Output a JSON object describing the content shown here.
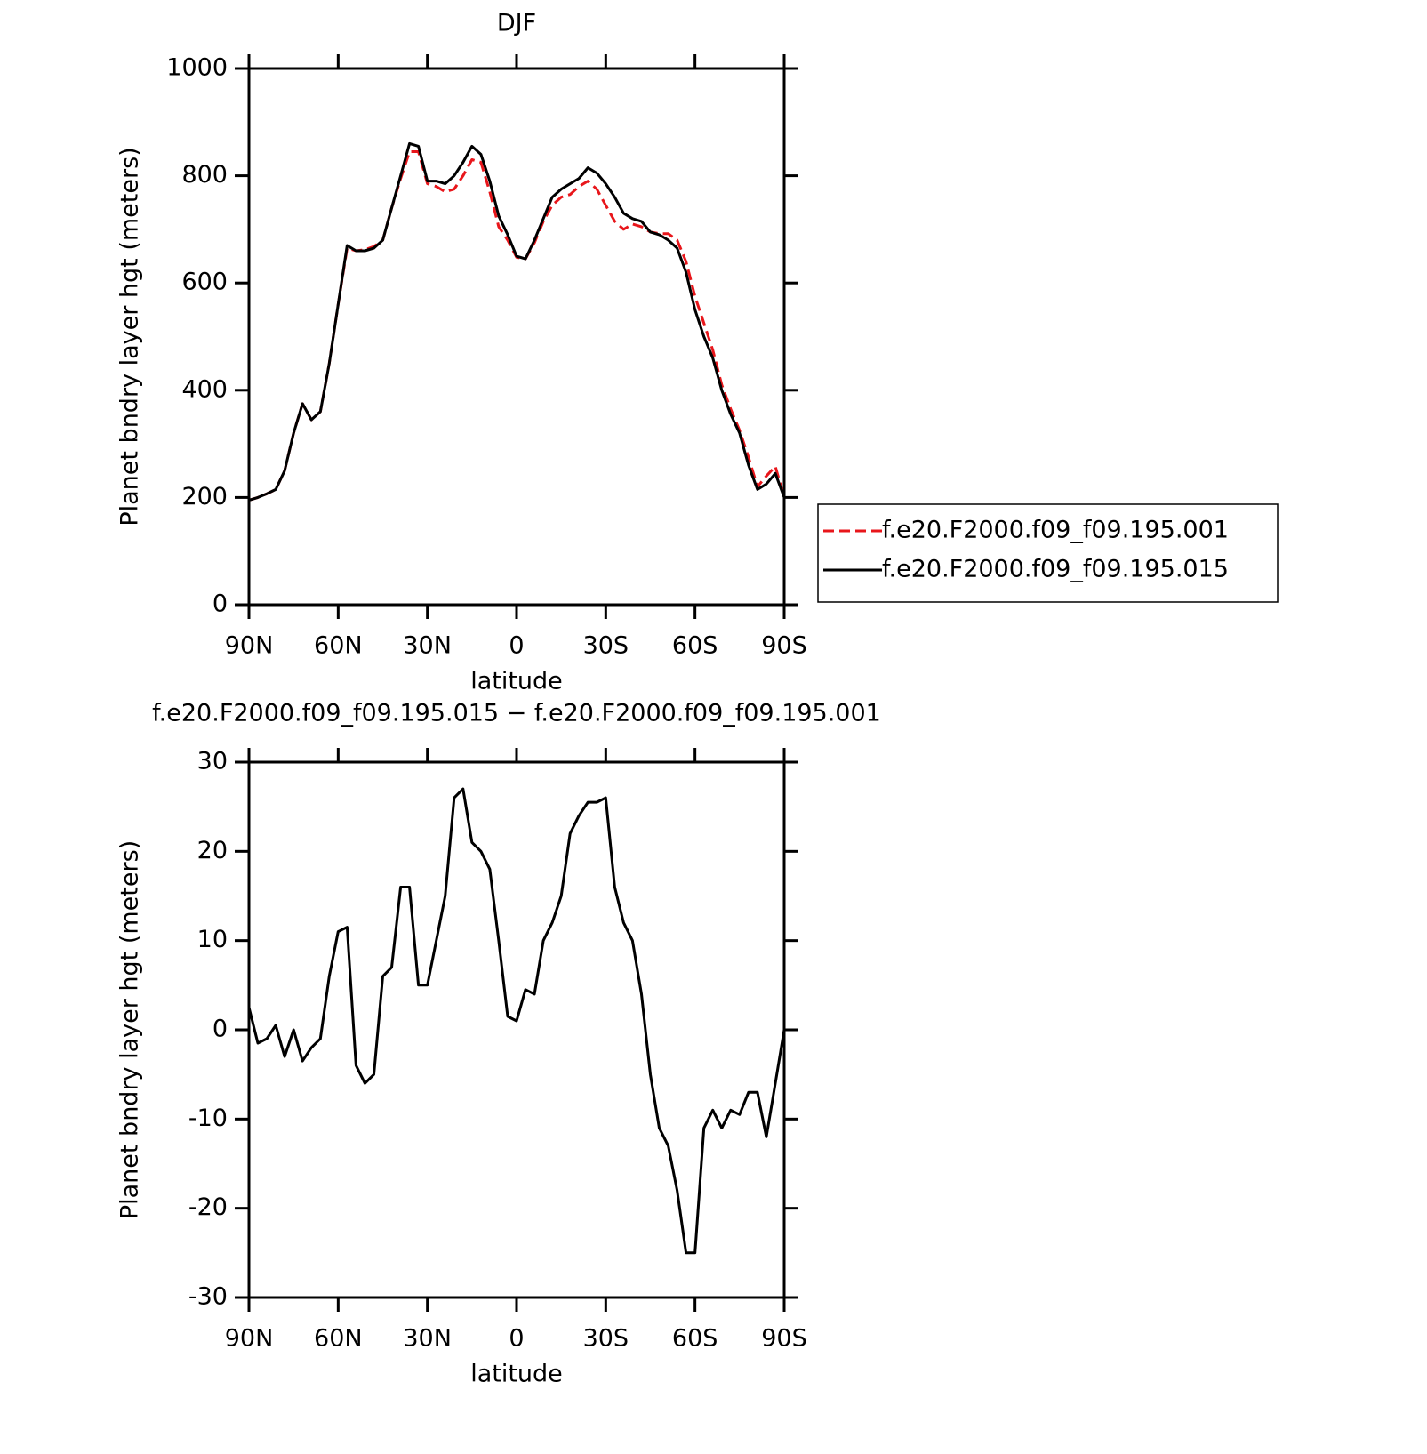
{
  "chart_data": [
    {
      "type": "line",
      "title": "DJF",
      "ylabel": "Planet bndry layer hgt (meters)",
      "xlabel": "latitude",
      "x": [
        90,
        87,
        84,
        81,
        78,
        75,
        72,
        69,
        66,
        63,
        60,
        57,
        54,
        51,
        48,
        45,
        42,
        39,
        36,
        33,
        30,
        27,
        24,
        21,
        18,
        15,
        12,
        9,
        6,
        3,
        0,
        -3,
        -6,
        -9,
        -12,
        -15,
        -18,
        -21,
        -24,
        -27,
        -30,
        -33,
        -36,
        -39,
        -42,
        -45,
        -48,
        -51,
        -54,
        -57,
        -60,
        -63,
        -66,
        -69,
        -72,
        -75,
        -78,
        -81,
        -84,
        -87,
        -90
      ],
      "series": [
        {
          "name": "f.e20.F2000.f09_f09.195.001",
          "color": "#e8161b",
          "style": "dashed",
          "values": [
            195,
            200,
            207,
            215,
            250,
            320,
            375,
            345,
            360,
            450,
            560,
            665,
            660,
            662,
            668,
            680,
            740,
            795,
            845,
            845,
            785,
            780,
            770,
            775,
            800,
            830,
            825,
            770,
            705,
            680,
            648,
            645,
            675,
            715,
            745,
            760,
            765,
            780,
            790,
            775,
            745,
            715,
            700,
            710,
            705,
            695,
            692,
            692,
            680,
            640,
            575,
            525,
            475,
            410,
            365,
            325,
            275,
            220,
            240,
            258,
            200
          ]
        },
        {
          "name": "f.e20.F2000.f09_f09.195.015",
          "color": "#000000",
          "style": "solid",
          "values": [
            195,
            200,
            207,
            215,
            250,
            320,
            375,
            345,
            360,
            450,
            560,
            670,
            660,
            660,
            665,
            680,
            740,
            800,
            860,
            855,
            790,
            790,
            785,
            800,
            825,
            855,
            840,
            790,
            725,
            690,
            650,
            645,
            680,
            720,
            760,
            775,
            785,
            795,
            815,
            805,
            785,
            760,
            730,
            720,
            715,
            695,
            690,
            680,
            665,
            620,
            550,
            500,
            460,
            400,
            355,
            320,
            260,
            215,
            225,
            245,
            200
          ]
        }
      ],
      "xlim": [
        90,
        -90
      ],
      "xticks": [
        {
          "value": 90,
          "label": "90N"
        },
        {
          "value": 60,
          "label": "60N"
        },
        {
          "value": 30,
          "label": "30N"
        },
        0,
        {
          "value": -30,
          "label": "30S"
        },
        {
          "value": -60,
          "label": "60S"
        },
        {
          "value": -90,
          "label": "90S"
        }
      ],
      "ylim": [
        0,
        1000
      ],
      "yticks": [
        0,
        200,
        400,
        600,
        800,
        1000
      ],
      "legend": "right"
    },
    {
      "type": "line",
      "title": "f.e20.F2000.f09_f09.195.015 − f.e20.F2000.f09_f09.195.001",
      "ylabel": "Planet bndry layer hgt (meters)",
      "xlabel": "latitude",
      "x": [
        90,
        87,
        84,
        81,
        78,
        75,
        72,
        69,
        66,
        63,
        60,
        57,
        54,
        51,
        48,
        45,
        42,
        39,
        36,
        33,
        30,
        27,
        24,
        21,
        18,
        15,
        12,
        9,
        6,
        3,
        0,
        -3,
        -6,
        -9,
        -12,
        -15,
        -18,
        -21,
        -24,
        -27,
        -30,
        -33,
        -36,
        -39,
        -42,
        -45,
        -48,
        -51,
        -54,
        -57,
        -60,
        -63,
        -66,
        -69,
        -72,
        -75,
        -78,
        -81,
        -84,
        -87,
        -90
      ],
      "series": [
        {
          "color": "#000000",
          "style": "solid",
          "values": [
            2.5,
            -1.5,
            -1,
            0.5,
            -3,
            0,
            -3.5,
            -2,
            -1,
            6,
            11,
            11.5,
            -4,
            -6,
            -5,
            6,
            7,
            16,
            16,
            5,
            5,
            10,
            15,
            26,
            27,
            21,
            20,
            18,
            10,
            1.5,
            1,
            4.5,
            4,
            10,
            12,
            15,
            22,
            24,
            25.5,
            25.5,
            26,
            16,
            12,
            10,
            4,
            -5,
            -11,
            -13,
            -18,
            -25,
            -25,
            -11,
            -9,
            -11,
            -9,
            -9.5,
            -7,
            -7,
            -12,
            -6,
            0
          ]
        }
      ],
      "xlim": [
        90,
        -90
      ],
      "xticks": [
        {
          "value": 90,
          "label": "90N"
        },
        {
          "value": 60,
          "label": "60N"
        },
        {
          "value": 30,
          "label": "30N"
        },
        0,
        {
          "value": -30,
          "label": "30S"
        },
        {
          "value": -60,
          "label": "60S"
        },
        {
          "value": -90,
          "label": "90S"
        }
      ],
      "ylim": [
        -30,
        30
      ],
      "yticks": [
        -30,
        -20,
        -10,
        0,
        10,
        20,
        30
      ]
    }
  ]
}
